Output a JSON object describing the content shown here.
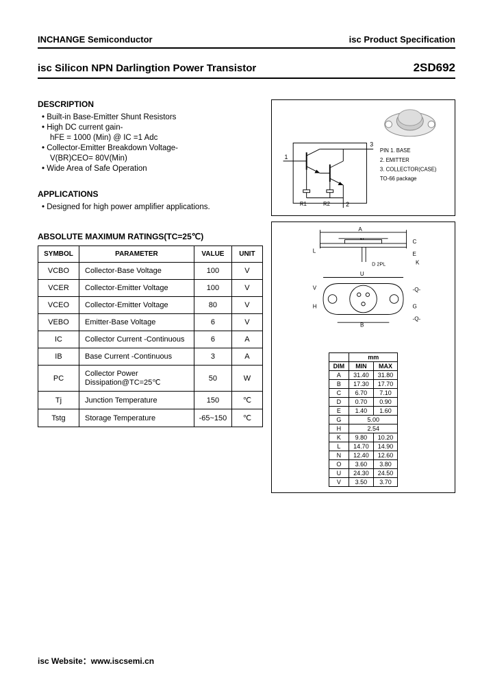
{
  "header": {
    "left": "INCHANGE Semiconductor",
    "right": "isc Product Specification"
  },
  "title": {
    "main": "isc Silicon NPN Darlingtion Power Transistor",
    "part": "2SD692"
  },
  "description": {
    "heading": "DESCRIPTION",
    "items": [
      "Built-in Base-Emitter Shunt Resistors",
      "High DC current gain-",
      "Collector-Emitter Breakdown Voltage-",
      "Wide Area of Safe Operation"
    ],
    "sub1": "hFE = 1000 (Min) @ IC =1 Adc",
    "sub2": "V(BR)CEO= 80V(Min)"
  },
  "applications": {
    "heading": "APPLICATIONS",
    "text": "Designed for high power amplifier applications."
  },
  "ratings": {
    "heading": "ABSOLUTE MAXIMUM RATINGS(TC=25℃)",
    "columns": [
      "SYMBOL",
      "PARAMETER",
      "VALUE",
      "UNIT"
    ],
    "rows": [
      [
        "VCBO",
        "Collector-Base Voltage",
        "100",
        "V"
      ],
      [
        "VCER",
        "Collector-Emitter Voltage",
        "100",
        "V"
      ],
      [
        "VCEO",
        "Collector-Emitter Voltage",
        "80",
        "V"
      ],
      [
        "VEBO",
        "Emitter-Base Voltage",
        "6",
        "V"
      ],
      [
        "IC",
        "Collector Current -Continuous",
        "6",
        "A"
      ],
      [
        "IB",
        "Base Current -Continuous",
        "3",
        "A"
      ],
      [
        "PC",
        "Collector Power Dissipation@TC=25℃",
        "50",
        "W"
      ],
      [
        "Tj",
        "Junction Temperature",
        "150",
        "℃"
      ],
      [
        "Tstg",
        "Storage Temperature",
        "-65~150",
        "℃"
      ]
    ]
  },
  "pinout": {
    "labels": [
      "PIN 1. BASE",
      "2. EMITTER",
      "3. COLLECTOR(CASE)",
      "TO-66 package"
    ],
    "r1": "R1",
    "r2": "R2",
    "pins": [
      "1",
      "2",
      "3"
    ]
  },
  "package": {
    "dim_labels": [
      "A",
      "N",
      "C",
      "E",
      "L",
      "K",
      "D",
      "U",
      "V",
      "B",
      "H",
      "G",
      "Q"
    ],
    "dim_header": [
      "DIM",
      "MIN",
      "MAX"
    ],
    "dims": [
      [
        "A",
        "31.40",
        "31.80"
      ],
      [
        "B",
        "17.30",
        "17.70"
      ],
      [
        "C",
        "6.70",
        "7.10"
      ],
      [
        "D",
        "0.70",
        "0.90"
      ],
      [
        "E",
        "1.40",
        "1.60"
      ],
      [
        "G",
        "5.00",
        ""
      ],
      [
        "H",
        "2.54",
        ""
      ],
      [
        "K",
        "9.80",
        "10.20"
      ],
      [
        "L",
        "14.70",
        "14.90"
      ],
      [
        "N",
        "12.40",
        "12.60"
      ],
      [
        "O",
        "3.60",
        "3.80"
      ],
      [
        "U",
        "24.30",
        "24.50"
      ],
      [
        "V",
        "3.50",
        "3.70"
      ]
    ],
    "unit": "mm",
    "d2pl": "D 2PL"
  },
  "footer": "isc Website：www.iscsemi.cn",
  "colors": {
    "text": "#000000",
    "border": "#000000",
    "bg": "#ffffff",
    "shade": "#d0d0d0"
  }
}
